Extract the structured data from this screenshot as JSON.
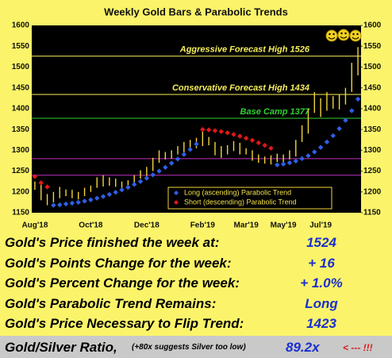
{
  "chart_data": {
    "type": "bar",
    "title": "Weekly Gold Bars & Parabolic Trends",
    "categories": [
      "Aug'18",
      null,
      null,
      null,
      null,
      null,
      null,
      null,
      null,
      "Oct'18",
      null,
      null,
      null,
      null,
      null,
      null,
      null,
      null,
      "Dec'18",
      null,
      null,
      null,
      null,
      null,
      null,
      null,
      null,
      "Feb'19",
      null,
      null,
      null,
      null,
      null,
      null,
      "Mar'19",
      null,
      null,
      null,
      null,
      null,
      "May'19",
      null,
      null,
      null,
      null,
      null,
      "Jul'19",
      null,
      null,
      null,
      null,
      null,
      null
    ],
    "bars": {
      "color": "#f2d43a",
      "low": [
        1205,
        1180,
        1168,
        1175,
        1185,
        1190,
        1185,
        1182,
        1190,
        1200,
        1210,
        1213,
        1215,
        1212,
        1205,
        1210,
        1220,
        1232,
        1238,
        1250,
        1270,
        1278,
        1280,
        1290,
        1295,
        1302,
        1305,
        1310,
        1312,
        1288,
        1282,
        1290,
        1298,
        1290,
        1290,
        1275,
        1270,
        1268,
        1266,
        1272,
        1268,
        1278,
        1285,
        1320,
        1340,
        1390,
        1380,
        1395,
        1400,
        1398,
        1410,
        1440,
        1480
      ],
      "high": [
        1225,
        1218,
        1195,
        1200,
        1212,
        1206,
        1205,
        1200,
        1210,
        1215,
        1235,
        1240,
        1235,
        1232,
        1225,
        1228,
        1240,
        1252,
        1260,
        1282,
        1300,
        1296,
        1300,
        1310,
        1320,
        1325,
        1330,
        1345,
        1332,
        1320,
        1310,
        1312,
        1322,
        1318,
        1305,
        1300,
        1290,
        1285,
        1288,
        1292,
        1290,
        1300,
        1325,
        1360,
        1400,
        1440,
        1425,
        1440,
        1430,
        1435,
        1450,
        1510,
        1548
      ]
    },
    "series": [
      {
        "name": "Long (ascending) Parabolic Trend",
        "color": "#2f5fe8",
        "values": [
          null,
          null,
          null,
          1168,
          1169,
          1171,
          1173,
          1175,
          1178,
          1181,
          1185,
          1189,
          1194,
          1199,
          1205,
          1211,
          1218,
          1225,
          1233,
          1241,
          1250,
          1259,
          1269,
          1279,
          1290,
          1302,
          1315,
          null,
          null,
          null,
          null,
          null,
          null,
          null,
          null,
          null,
          null,
          null,
          null,
          1265,
          1267,
          1270,
          1274,
          1280,
          1287,
          1296,
          1307,
          1320,
          1335,
          1352,
          1372,
          1395,
          1423
        ]
      },
      {
        "name": "Short (descending) Parabolic Trend",
        "color": "#e01818",
        "values": [
          1237,
          1222,
          1212,
          null,
          null,
          null,
          null,
          null,
          null,
          null,
          null,
          null,
          null,
          null,
          null,
          null,
          null,
          null,
          null,
          null,
          null,
          null,
          null,
          null,
          null,
          null,
          null,
          1350,
          1349,
          1347,
          1345,
          1342,
          1338,
          1334,
          1329,
          1324,
          1318,
          1312,
          1305,
          null,
          null,
          null,
          null,
          null,
          null,
          null,
          null,
          null,
          null,
          null,
          null,
          null,
          null
        ]
      }
    ],
    "reference_lines": [
      {
        "value": 1526,
        "label": "Aggressive Forecast High 1526",
        "color": "#f7ef5a"
      },
      {
        "value": 1434,
        "label": "Conservative Forecast High 1434",
        "color": "#f7ef5a"
      },
      {
        "value": 1377,
        "label": "Base Camp 1377",
        "color": "#2fd02f"
      },
      {
        "value": 1280,
        "color": "#c030c0"
      },
      {
        "value": 1240,
        "color": "#c030c0"
      }
    ],
    "ylim": [
      1150,
      1600
    ],
    "yticks": [
      1150,
      1200,
      1250,
      1300,
      1350,
      1400,
      1450,
      1500,
      1550,
      1600
    ]
  },
  "summary": {
    "rows": [
      {
        "label": "Gold's Price finished the week at:",
        "value": "1524"
      },
      {
        "label": "Gold's Points Change for the week:",
        "value": "+ 16"
      },
      {
        "label": "Gold's Percent Change for the week:",
        "value": "+ 1.0%"
      },
      {
        "label": "Gold's Parabolic Trend Remains:",
        "value": "Long"
      },
      {
        "label": "Gold's Price Necessary to Flip Trend:",
        "value": "1423"
      }
    ],
    "ratio": {
      "label": "Gold/Silver Ratio,",
      "note": "(+80x suggests Silver too low)",
      "value": "89.2x",
      "alert": "< --- !!!"
    }
  }
}
